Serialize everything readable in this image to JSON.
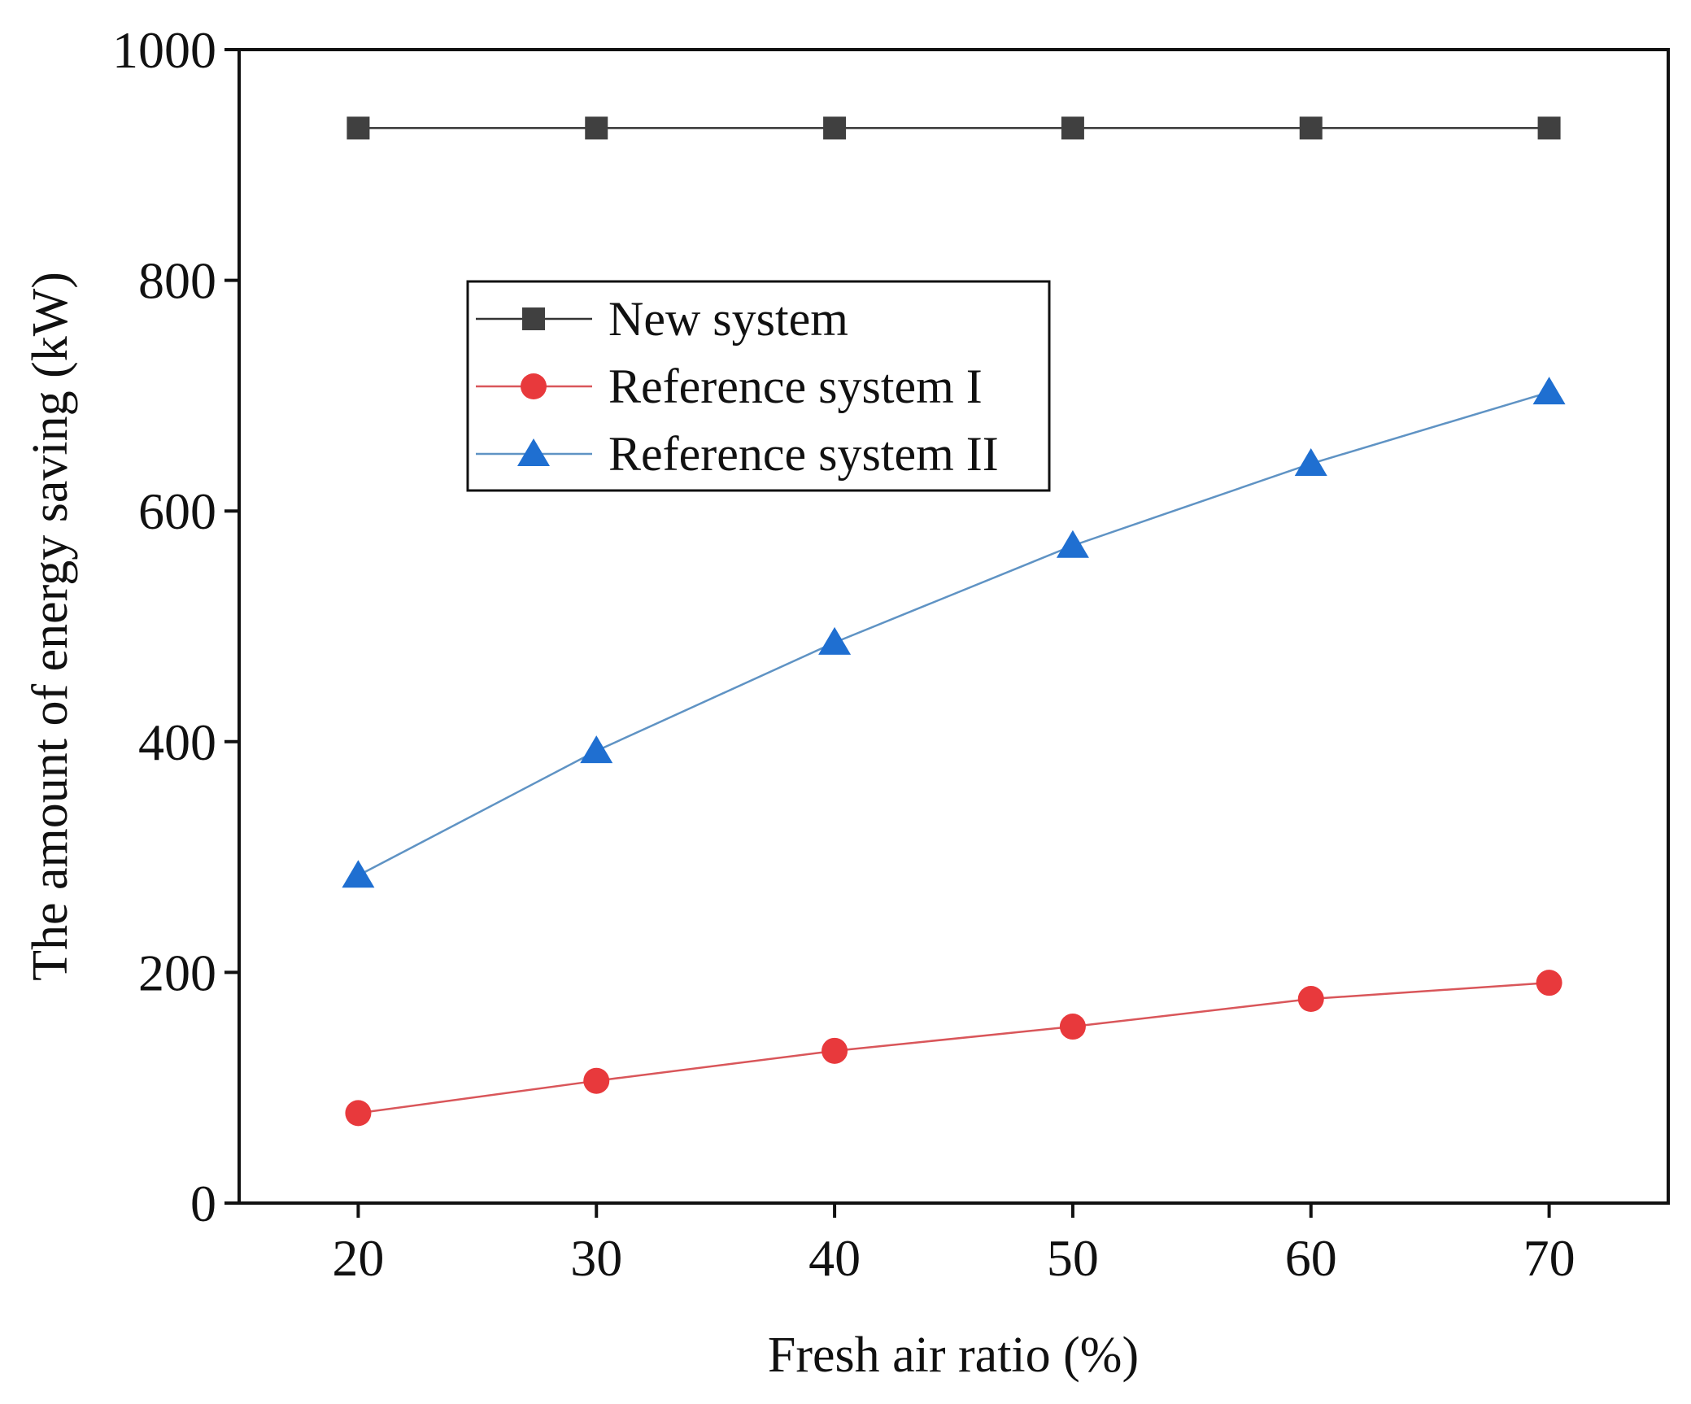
{
  "chart_data": {
    "type": "line",
    "title": "",
    "xlabel": "Fresh air ratio (%)",
    "ylabel": "The amount of energy saving (kW)",
    "x": [
      20,
      30,
      40,
      50,
      60,
      70
    ],
    "xticks": [
      20,
      30,
      40,
      50,
      60,
      70
    ],
    "yticks": [
      0,
      200,
      400,
      600,
      800,
      1000
    ],
    "xlim": [
      15,
      75
    ],
    "ylim": [
      0,
      1000
    ],
    "grid": false,
    "legend_position": "upper-left",
    "series": [
      {
        "name": "New system",
        "marker": "square",
        "color": "#404040",
        "line_color": "#333333",
        "values": [
          932,
          932,
          932,
          932,
          932,
          932
        ]
      },
      {
        "name": "Reference system I",
        "marker": "circle",
        "color": "#e8393c",
        "line_color": "#d9565a",
        "values": [
          78,
          106,
          132,
          153,
          177,
          191
        ]
      },
      {
        "name": "Reference system II",
        "marker": "triangle",
        "color": "#1f6fd1",
        "line_color": "#5f93c4",
        "values": [
          284,
          392,
          486,
          570,
          641,
          703
        ]
      }
    ]
  }
}
